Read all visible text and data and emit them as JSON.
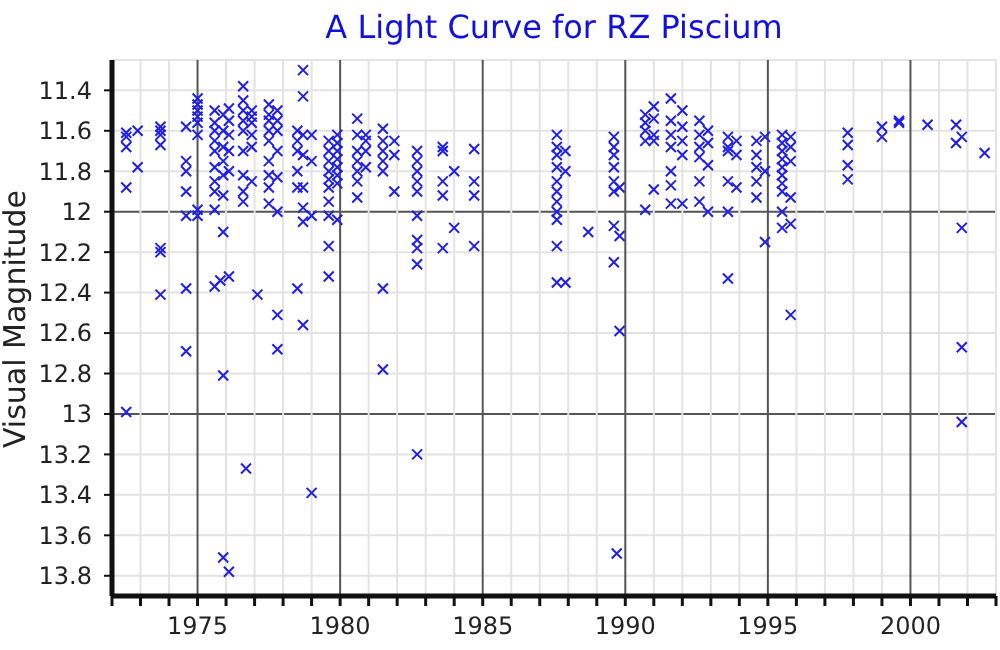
{
  "chart_data": {
    "type": "scatter",
    "title": "A Light Curve for RZ Piscium",
    "ylabel": "Visual Magnitude",
    "x": [
      1972.5,
      1972.5,
      1972.5,
      1972.5,
      1972.5,
      1972.9,
      1972.9,
      1973.7,
      1973.7,
      1973.7,
      1973.7,
      1973.7,
      1973.7,
      1973.7,
      1974.6,
      1974.6,
      1974.6,
      1974.6,
      1974.6,
      1974.6,
      1974.6,
      1975.0,
      1975.0,
      1975.0,
      1975.0,
      1975.0,
      1975.0,
      1975.0,
      1975.0,
      1975.6,
      1975.6,
      1975.6,
      1975.6,
      1975.6,
      1975.6,
      1975.6,
      1975.6,
      1975.6,
      1975.6,
      1975.8,
      1975.9,
      1975.9,
      1975.9,
      1975.9,
      1975.9,
      1975.9,
      1975.9,
      1975.9,
      1975.9,
      1976.1,
      1976.1,
      1976.1,
      1976.1,
      1976.1,
      1976.1,
      1976.1,
      1976.6,
      1976.6,
      1976.6,
      1976.6,
      1976.6,
      1976.6,
      1976.6,
      1976.6,
      1976.6,
      1976.9,
      1976.9,
      1976.9,
      1976.9,
      1976.9,
      1976.9,
      1976.7,
      1977.1,
      1977.5,
      1977.5,
      1977.5,
      1977.5,
      1977.5,
      1977.5,
      1977.5,
      1977.5,
      1977.5,
      1977.8,
      1977.8,
      1977.8,
      1977.8,
      1977.8,
      1977.8,
      1977.8,
      1977.8,
      1978.5,
      1978.5,
      1978.5,
      1978.5,
      1978.5,
      1978.5,
      1978.7,
      1978.7,
      1978.7,
      1978.7,
      1978.7,
      1978.7,
      1978.7,
      1978.7,
      1979.0,
      1979.0,
      1979.0,
      1979.0,
      1979.6,
      1979.6,
      1979.6,
      1979.6,
      1979.6,
      1979.6,
      1979.6,
      1979.6,
      1979.6,
      1979.6,
      1979.9,
      1979.9,
      1979.9,
      1979.9,
      1979.9,
      1979.9,
      1979.9,
      1979.9,
      1980.6,
      1980.6,
      1980.6,
      1980.6,
      1980.6,
      1980.6,
      1980.6,
      1980.9,
      1980.9,
      1980.9,
      1980.9,
      1981.5,
      1981.5,
      1981.5,
      1981.5,
      1981.5,
      1981.5,
      1981.5,
      1981.9,
      1981.9,
      1981.9,
      1982.7,
      1982.7,
      1982.7,
      1982.7,
      1982.7,
      1982.7,
      1982.7,
      1982.7,
      1982.7,
      1982.7,
      1983.6,
      1983.6,
      1983.6,
      1983.6,
      1983.6,
      1984.0,
      1984.0,
      1984.7,
      1984.7,
      1984.7,
      1984.7,
      1987.6,
      1987.6,
      1987.6,
      1987.6,
      1987.6,
      1987.6,
      1987.6,
      1987.6,
      1987.6,
      1987.6,
      1987.6,
      1987.9,
      1987.9,
      1987.9,
      1988.7,
      1989.6,
      1989.6,
      1989.6,
      1989.6,
      1989.6,
      1989.6,
      1989.6,
      1989.6,
      1989.8,
      1989.8,
      1989.8,
      1989.7,
      1990.7,
      1990.7,
      1990.7,
      1990.7,
      1990.7,
      1991.0,
      1991.0,
      1991.0,
      1991.0,
      1991.0,
      1991.6,
      1991.6,
      1991.6,
      1991.6,
      1991.6,
      1991.6,
      1991.6,
      1992.0,
      1992.0,
      1992.0,
      1992.0,
      1992.0,
      1992.6,
      1992.6,
      1992.6,
      1992.6,
      1992.6,
      1992.6,
      1992.9,
      1992.9,
      1992.9,
      1992.9,
      1993.6,
      1993.6,
      1993.6,
      1993.6,
      1993.6,
      1993.6,
      1993.9,
      1993.9,
      1993.9,
      1994.6,
      1994.6,
      1994.6,
      1994.6,
      1994.6,
      1994.9,
      1994.9,
      1994.9,
      1995.5,
      1995.5,
      1995.5,
      1995.5,
      1995.5,
      1995.5,
      1995.5,
      1995.5,
      1995.5,
      1995.5,
      1995.8,
      1995.8,
      1995.8,
      1995.8,
      1995.8,
      1995.8,
      1997.8,
      1997.8,
      1997.8,
      1997.8,
      1999.0,
      1999.0,
      1999.6,
      1999.6,
      2000.6,
      2001.6,
      2001.6,
      2001.8,
      2001.8,
      2001.8,
      2001.8,
      2002.6
    ],
    "values": [
      11.61,
      11.63,
      11.68,
      11.88,
      12.99,
      11.6,
      11.78,
      11.58,
      11.6,
      11.62,
      11.67,
      12.18,
      12.2,
      12.41,
      11.58,
      11.75,
      11.8,
      11.9,
      12.02,
      12.38,
      12.69,
      11.44,
      11.47,
      11.5,
      11.53,
      11.56,
      11.62,
      11.99,
      12.02,
      11.5,
      11.56,
      11.6,
      11.65,
      11.7,
      11.78,
      11.85,
      11.9,
      11.99,
      12.37,
      12.34,
      11.52,
      11.6,
      11.68,
      11.75,
      11.82,
      11.92,
      12.1,
      12.81,
      13.71,
      11.49,
      11.55,
      11.62,
      11.7,
      11.8,
      12.32,
      13.78,
      11.38,
      11.45,
      11.5,
      11.55,
      11.6,
      11.7,
      11.82,
      11.9,
      11.95,
      11.5,
      11.53,
      11.56,
      11.62,
      11.68,
      11.85,
      13.27,
      12.41,
      11.47,
      11.52,
      11.55,
      11.6,
      11.65,
      11.75,
      11.82,
      11.88,
      11.96,
      11.5,
      11.55,
      11.6,
      11.7,
      11.83,
      12.0,
      12.51,
      12.68,
      11.6,
      11.65,
      11.7,
      11.8,
      11.88,
      12.38,
      11.3,
      11.43,
      11.62,
      11.72,
      11.88,
      11.98,
      12.05,
      12.56,
      11.62,
      11.75,
      12.02,
      13.39,
      11.65,
      11.7,
      11.75,
      11.8,
      11.84,
      11.88,
      11.95,
      12.02,
      12.17,
      12.32,
      11.62,
      11.66,
      11.7,
      11.74,
      11.78,
      11.82,
      11.86,
      12.04,
      11.54,
      11.62,
      11.7,
      11.75,
      11.8,
      11.85,
      11.93,
      11.62,
      11.65,
      11.7,
      11.78,
      11.59,
      11.65,
      11.7,
      11.75,
      11.8,
      12.38,
      12.78,
      11.65,
      11.72,
      11.9,
      11.7,
      11.75,
      11.8,
      11.85,
      11.9,
      12.02,
      12.14,
      12.18,
      12.26,
      13.2,
      11.68,
      11.7,
      11.85,
      11.92,
      12.18,
      11.8,
      12.08,
      11.69,
      11.85,
      11.92,
      12.17,
      11.62,
      11.68,
      11.72,
      11.78,
      11.85,
      11.9,
      11.95,
      12.0,
      12.04,
      12.17,
      12.35,
      11.7,
      11.8,
      12.35,
      12.1,
      11.63,
      11.68,
      11.72,
      11.78,
      11.85,
      11.9,
      12.07,
      12.25,
      11.88,
      12.12,
      12.59,
      13.69,
      11.52,
      11.56,
      11.6,
      11.65,
      11.99,
      11.48,
      11.54,
      11.62,
      11.65,
      11.89,
      11.44,
      11.55,
      11.62,
      11.68,
      11.8,
      11.87,
      11.96,
      11.5,
      11.58,
      11.65,
      11.72,
      11.96,
      11.55,
      11.62,
      11.68,
      11.73,
      11.85,
      11.95,
      11.6,
      11.66,
      11.77,
      12.0,
      11.63,
      11.68,
      11.7,
      11.85,
      12.0,
      12.33,
      11.65,
      11.72,
      11.88,
      11.65,
      11.72,
      11.78,
      11.85,
      11.93,
      11.63,
      11.8,
      12.15,
      11.62,
      11.66,
      11.7,
      11.74,
      11.78,
      11.82,
      11.86,
      11.9,
      12.0,
      12.08,
      11.63,
      11.68,
      11.75,
      11.93,
      12.06,
      12.51,
      11.61,
      11.67,
      11.77,
      11.84,
      11.58,
      11.63,
      11.55,
      11.56,
      11.57,
      11.57,
      11.66,
      11.63,
      12.08,
      12.67,
      13.04,
      11.71
    ],
    "color": "#1f1fe6",
    "marker": "cross",
    "xlim": [
      1972,
      2003
    ],
    "xticks": [
      {
        "value": 1972,
        "label": null
      },
      {
        "value": 1973,
        "label": null
      },
      {
        "value": 1974,
        "label": null
      },
      1975,
      {
        "value": 1976,
        "label": null
      },
      {
        "value": 1977,
        "label": null
      },
      {
        "value": 1978,
        "label": null
      },
      {
        "value": 1979,
        "label": null
      },
      1980,
      {
        "value": 1981,
        "label": null
      },
      {
        "value": 1982,
        "label": null
      },
      {
        "value": 1983,
        "label": null
      },
      {
        "value": 1984,
        "label": null
      },
      1985,
      {
        "value": 1986,
        "label": null
      },
      {
        "value": 1987,
        "label": null
      },
      {
        "value": 1988,
        "label": null
      },
      {
        "value": 1989,
        "label": null
      },
      1990,
      {
        "value": 1991,
        "label": null
      },
      {
        "value": 1992,
        "label": null
      },
      {
        "value": 1993,
        "label": null
      },
      {
        "value": 1994,
        "label": null
      },
      1995,
      {
        "value": 1996,
        "label": null
      },
      {
        "value": 1997,
        "label": null
      },
      {
        "value": 1998,
        "label": null
      },
      {
        "value": 1999,
        "label": null
      },
      2000,
      {
        "value": 2001,
        "label": null
      },
      {
        "value": 2002,
        "label": null
      },
      {
        "value": 2003,
        "label": null
      }
    ],
    "ylim": [
      13.9,
      11.25
    ],
    "yticks": [
      11.4,
      11.6,
      11.8,
      12,
      12.2,
      12.4,
      12.6,
      12.8,
      13,
      13.2,
      13.4,
      13.6,
      13.8
    ],
    "grid": true,
    "legend": false
  }
}
